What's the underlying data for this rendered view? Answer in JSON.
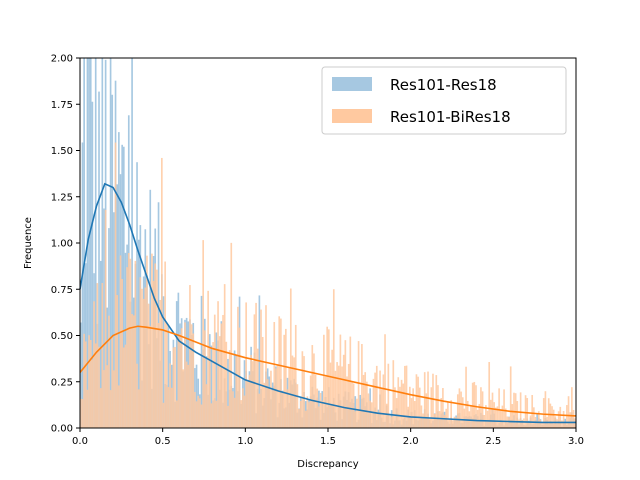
{
  "chart_data": {
    "type": "bar",
    "xlabel": "Discrepancy",
    "ylabel": "Frequence",
    "xlim": [
      0.0,
      3.0
    ],
    "ylim": [
      0.0,
      2.0
    ],
    "x_ticks": [
      "0.0",
      "0.5",
      "1.0",
      "1.5",
      "2.0",
      "2.5",
      "3.0"
    ],
    "y_ticks": [
      "0.00",
      "0.25",
      "0.50",
      "0.75",
      "1.00",
      "1.25",
      "1.50",
      "1.75",
      "2.00"
    ],
    "legend_position": "top-right",
    "bin_width": 0.01,
    "series": [
      {
        "name": "Res101-Res18",
        "hist_color": "#a6c8e1",
        "line_color": "#1f77b4",
        "hist_profile": {
          "x": [
            0.0,
            0.02,
            0.05,
            0.1,
            0.15,
            0.2,
            0.3,
            0.4,
            0.5,
            0.6,
            0.8,
            1.0,
            1.2,
            1.5,
            2.0,
            2.5,
            3.0
          ],
          "y": [
            0.05,
            1.7,
            1.8,
            1.35,
            1.35,
            1.3,
            1.1,
            0.85,
            0.65,
            0.5,
            0.38,
            0.28,
            0.2,
            0.13,
            0.06,
            0.04,
            0.03
          ]
        },
        "kde": {
          "x": [
            0.0,
            0.05,
            0.1,
            0.15,
            0.2,
            0.25,
            0.3,
            0.35,
            0.4,
            0.45,
            0.5,
            0.6,
            0.7,
            0.8,
            0.9,
            1.0,
            1.2,
            1.4,
            1.6,
            1.8,
            2.0,
            2.2,
            2.4,
            2.6,
            2.8,
            3.0
          ],
          "y": [
            0.75,
            1.02,
            1.2,
            1.32,
            1.3,
            1.22,
            1.1,
            0.96,
            0.83,
            0.7,
            0.6,
            0.47,
            0.41,
            0.36,
            0.31,
            0.26,
            0.2,
            0.15,
            0.11,
            0.08,
            0.06,
            0.05,
            0.04,
            0.035,
            0.03,
            0.03
          ]
        }
      },
      {
        "name": "Res101-BiRes18",
        "hist_color": "#ffc9a0",
        "line_color": "#ff7f0e",
        "hist_profile": {
          "x": [
            0.0,
            0.03,
            0.1,
            0.2,
            0.3,
            0.4,
            0.5,
            0.7,
            1.0,
            1.3,
            1.6,
            2.0,
            2.5,
            3.0
          ],
          "y": [
            0.05,
            0.35,
            0.45,
            0.55,
            0.58,
            0.56,
            0.54,
            0.48,
            0.42,
            0.34,
            0.3,
            0.2,
            0.13,
            0.08
          ]
        },
        "kde": {
          "x": [
            0.0,
            0.1,
            0.2,
            0.3,
            0.35,
            0.4,
            0.5,
            0.6,
            0.7,
            0.8,
            1.0,
            1.2,
            1.4,
            1.6,
            1.8,
            2.0,
            2.2,
            2.4,
            2.6,
            2.8,
            3.0
          ],
          "y": [
            0.3,
            0.41,
            0.5,
            0.54,
            0.55,
            0.545,
            0.53,
            0.5,
            0.465,
            0.43,
            0.38,
            0.34,
            0.3,
            0.26,
            0.22,
            0.18,
            0.145,
            0.115,
            0.09,
            0.075,
            0.065
          ]
        }
      }
    ]
  }
}
